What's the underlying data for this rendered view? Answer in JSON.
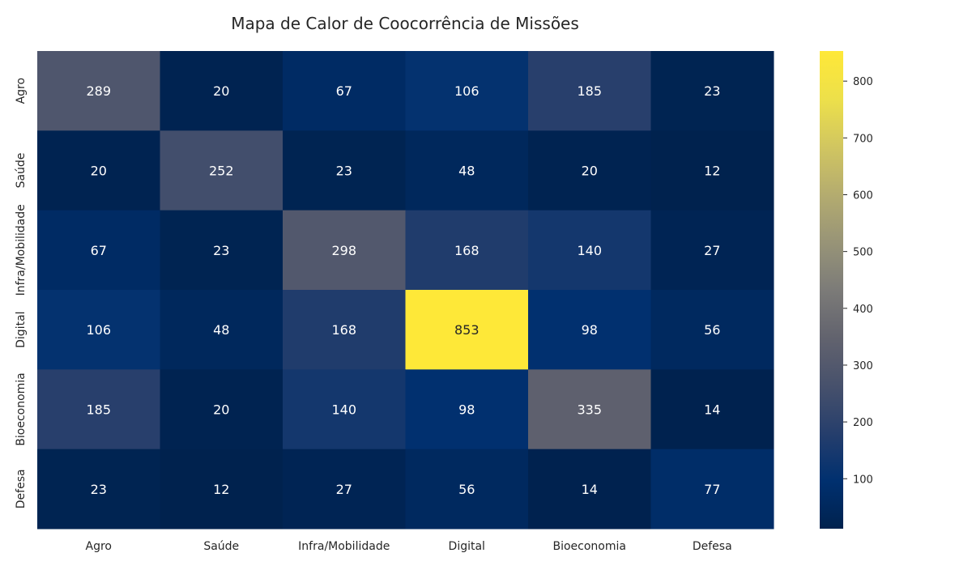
{
  "chart_data": {
    "type": "heatmap",
    "title": "Mapa de Calor de Coocorrência de Missões",
    "xlabel": "",
    "ylabel": "",
    "x_categories": [
      "Agro",
      "Saúde",
      "Infra/Mobilidade",
      "Digital",
      "Bioeconomia",
      "Defesa"
    ],
    "y_categories": [
      "Agro",
      "Saúde",
      "Infra/Mobilidade",
      "Digital",
      "Bioeconomia",
      "Defesa"
    ],
    "values": [
      [
        289,
        20,
        67,
        106,
        185,
        23
      ],
      [
        20,
        252,
        23,
        48,
        20,
        12
      ],
      [
        67,
        23,
        298,
        168,
        140,
        27
      ],
      [
        106,
        48,
        168,
        853,
        98,
        56
      ],
      [
        185,
        20,
        140,
        98,
        335,
        14
      ],
      [
        23,
        12,
        27,
        56,
        14,
        77
      ]
    ],
    "colormap": "cividis",
    "colorbar": {
      "range": [
        12,
        853
      ],
      "ticks": [
        100,
        200,
        300,
        400,
        500,
        600,
        700,
        800
      ]
    },
    "annotation_color_dark_cells": "#ffffff",
    "annotation_color_light_cells": "#262626",
    "grid": false
  }
}
